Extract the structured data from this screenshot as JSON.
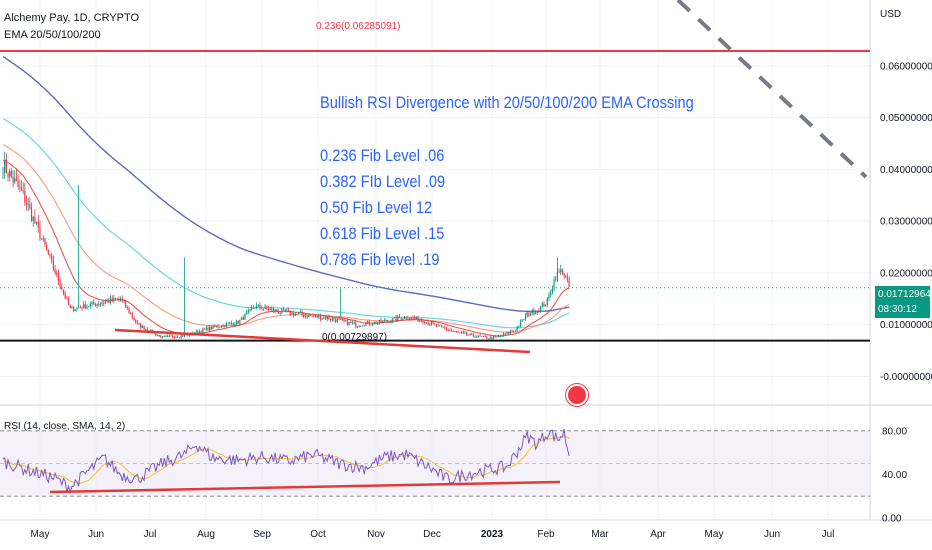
{
  "header": {
    "symbol_line": "Alchemy Pay, 1D, CRYPTO",
    "indicator_line": "EMA 20/50/100/200",
    "rsi_line": "RSI (14, close, SMA, 14, 2)"
  },
  "annotation": {
    "title": "Bullish RSI Divergence with 20/50/100/200 EMA Crossing",
    "lines": [
      "0.236 Fib Level .06",
      "0.382 FIb Level .09",
      "0.50 Fib Level 12",
      "0.618 Fib Level .15",
      "0.786 Fib level .19"
    ]
  },
  "fib_labels": {
    "top": "0.236(0.06285091)",
    "bottom": "0(0.00729897)"
  },
  "price_axis": {
    "currency": "USD",
    "ticks": [
      "0.06000000",
      "0.05000000",
      "0.04000000",
      "0.03000000",
      "0.02000000",
      "0.01000000",
      "-0.00000000"
    ],
    "current_price": "0.01712964",
    "countdown": "08:30:12"
  },
  "rsi_axis": {
    "ticks": [
      "80.00",
      "40.00",
      "0.00"
    ]
  },
  "time_axis": {
    "ticks": [
      "May",
      "Jun",
      "Jul",
      "Aug",
      "Sep",
      "Oct",
      "Nov",
      "Dec",
      "2023",
      "Feb",
      "Mar",
      "Apr",
      "May",
      "Jun",
      "Jul"
    ]
  },
  "colors": {
    "fib_line": "#f23645",
    "support_line": "#131722",
    "ema20": "#e53935",
    "ema50": "#ff8a65",
    "ema100": "#4dd0e1",
    "ema200": "#3f51b5",
    "candle_up": "#089981",
    "candle_down": "#f23645",
    "rsi_line": "#7e57c2",
    "rsi_ma": "#fbc02d",
    "trend_line": "#e53935",
    "projection": "#787b86"
  },
  "chart_data": {
    "type": "candlestick",
    "price_range": [
      -0.003,
      0.07
    ],
    "rsi_range": [
      0,
      100
    ],
    "fib_levels": [
      {
        "label": "0.236",
        "value": 0.06285091
      },
      {
        "label": "0",
        "value": 0.00729897
      }
    ],
    "price_anchors": [
      [
        0,
        0.041
      ],
      [
        12,
        0.035
      ],
      [
        25,
        0.025
      ],
      [
        40,
        0.013
      ],
      [
        55,
        0.014
      ],
      [
        70,
        0.015
      ],
      [
        80,
        0.01
      ],
      [
        95,
        0.0075
      ],
      [
        110,
        0.008
      ],
      [
        125,
        0.0095
      ],
      [
        140,
        0.0105
      ],
      [
        150,
        0.0135
      ],
      [
        165,
        0.0125
      ],
      [
        180,
        0.0118
      ],
      [
        195,
        0.0112
      ],
      [
        210,
        0.01
      ],
      [
        225,
        0.0105
      ],
      [
        240,
        0.0115
      ],
      [
        250,
        0.0108
      ],
      [
        260,
        0.0095
      ],
      [
        270,
        0.0085
      ],
      [
        280,
        0.0078
      ],
      [
        290,
        0.0074
      ],
      [
        295,
        0.0076
      ],
      [
        305,
        0.009
      ],
      [
        312,
        0.012
      ],
      [
        318,
        0.0128
      ],
      [
        324,
        0.0145
      ],
      [
        329,
        0.0195
      ],
      [
        333,
        0.0205
      ],
      [
        337,
        0.0172
      ]
    ],
    "rsi_anchors": [
      [
        0,
        52
      ],
      [
        15,
        44
      ],
      [
        30,
        37
      ],
      [
        40,
        28
      ],
      [
        50,
        42
      ],
      [
        60,
        55
      ],
      [
        70,
        40
      ],
      [
        80,
        36
      ],
      [
        95,
        50
      ],
      [
        108,
        58
      ],
      [
        115,
        68
      ],
      [
        125,
        55
      ],
      [
        140,
        53
      ],
      [
        155,
        56
      ],
      [
        170,
        52
      ],
      [
        185,
        58
      ],
      [
        200,
        50
      ],
      [
        215,
        46
      ],
      [
        228,
        56
      ],
      [
        240,
        58
      ],
      [
        255,
        45
      ],
      [
        265,
        35
      ],
      [
        275,
        40
      ],
      [
        285,
        43
      ],
      [
        300,
        47
      ],
      [
        312,
        75
      ],
      [
        318,
        68
      ],
      [
        325,
        80
      ],
      [
        330,
        72
      ],
      [
        334,
        78
      ],
      [
        337,
        58
      ]
    ]
  }
}
